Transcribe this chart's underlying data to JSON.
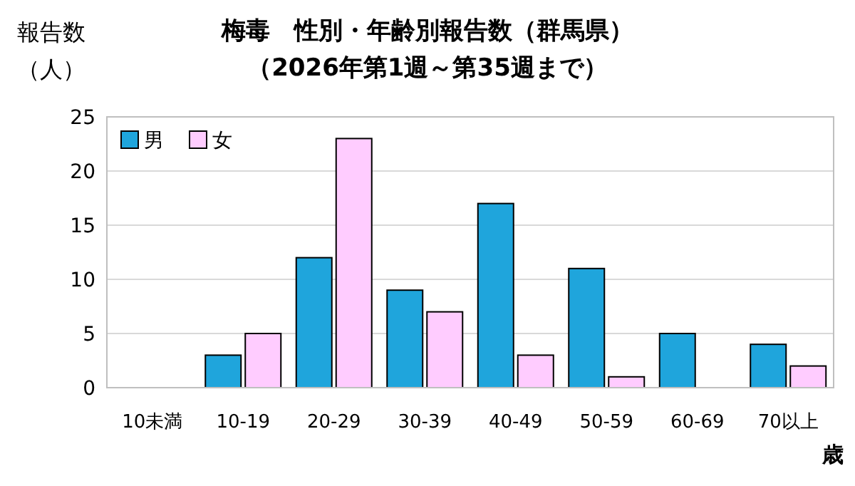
{
  "chart_data": {
    "type": "bar",
    "title": "梅毒　性別・年齢別報告数（群馬県）",
    "subtitle": "（2026年第1週～第35週まで）",
    "ylabel": "報告数（人）",
    "xlabel": "歳",
    "categories": [
      "10未満",
      "10-19",
      "20-29",
      "30-39",
      "40-49",
      "50-59",
      "60-69",
      "70以上"
    ],
    "series": [
      {
        "name": "男",
        "color": "#1fa5dc",
        "values": [
          0,
          3,
          12,
          9,
          17,
          11,
          5,
          4
        ]
      },
      {
        "name": "女",
        "color": "#ffccff",
        "values": [
          0,
          5,
          23,
          7,
          3,
          1,
          0,
          2
        ]
      }
    ],
    "ylim": [
      0,
      25
    ],
    "yticks": [
      0,
      5,
      10,
      15,
      20,
      25
    ],
    "grid": "y",
    "legend": "top left"
  }
}
